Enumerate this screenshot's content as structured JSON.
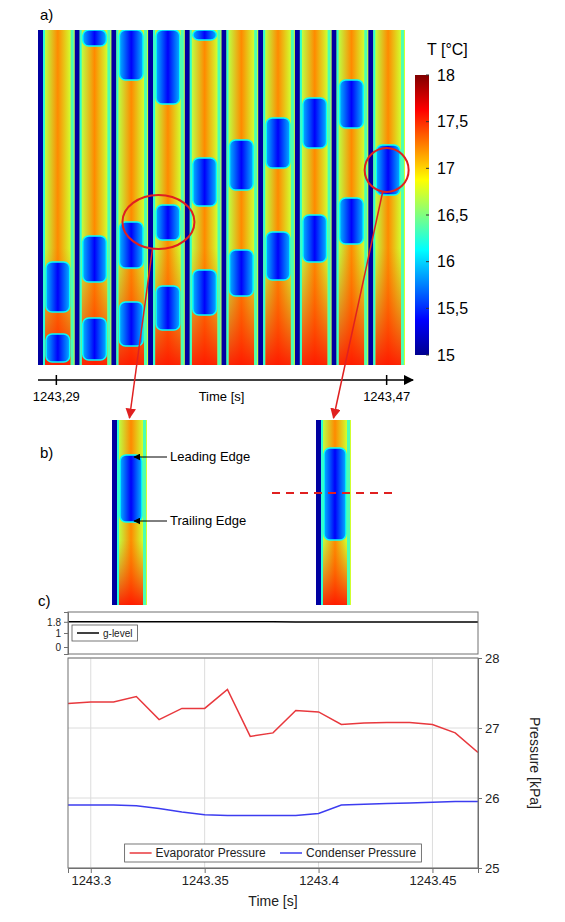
{
  "panel_a": {
    "label": "a)",
    "colorbar": {
      "title": "T [°C]",
      "range": [
        15,
        18
      ],
      "ticks": [
        15,
        {
          "value": 15.5,
          "label": "15,5"
        },
        16,
        {
          "value": 16.5,
          "label": "16,5"
        },
        17,
        {
          "value": 17.5,
          "label": "17,5"
        },
        18
      ]
    },
    "time_axis": {
      "title": "Time [s]",
      "ticks": [
        {
          "value": 1243.29,
          "label": "1243,29"
        },
        {
          "value": 1243.47,
          "label": "1243,47"
        }
      ]
    }
  },
  "panel_b": {
    "label": "b)",
    "annotations": [
      "Leading Edge",
      "Trailing Edge"
    ]
  },
  "panel_c": {
    "label": "c)"
  },
  "chart_data": [
    {
      "type": "line",
      "x": [
        1243.29,
        1243.3,
        1243.31,
        1243.32,
        1243.33,
        1243.34,
        1243.35,
        1243.36,
        1243.37,
        1243.38,
        1243.39,
        1243.4,
        1243.41,
        1243.42,
        1243.43,
        1243.44,
        1243.45,
        1243.46,
        1243.47
      ],
      "xlim": [
        1243.29,
        1243.47
      ],
      "ylim": [
        -0.5,
        2.5
      ],
      "yticks": [
        0,
        1,
        1.8
      ],
      "tick_labels": "y",
      "legend": "upper left",
      "series": [
        {
          "name": "g-level",
          "color": "#000000",
          "values": [
            1.8,
            1.8,
            1.8,
            1.8,
            1.8,
            1.8,
            1.8,
            1.8,
            1.8,
            1.8,
            1.79,
            1.79,
            1.79,
            1.79,
            1.79,
            1.79,
            1.79,
            1.79,
            1.79
          ]
        }
      ]
    },
    {
      "type": "line",
      "x_label": "Time [s]",
      "y_label": "Pressure [kPa]",
      "x": [
        1243.29,
        1243.3,
        1243.31,
        1243.32,
        1243.33,
        1243.34,
        1243.35,
        1243.36,
        1243.37,
        1243.38,
        1243.39,
        1243.4,
        1243.41,
        1243.42,
        1243.43,
        1243.44,
        1243.45,
        1243.46,
        1243.47
      ],
      "xlim": [
        1243.29,
        1243.47
      ],
      "xticks": [
        1243.3,
        1243.35,
        1243.4,
        1243.45
      ],
      "ylim": [
        25,
        28
      ],
      "yticks": [
        25,
        26,
        27,
        28
      ],
      "grid": true,
      "legend": "lower center",
      "series": [
        {
          "name": "Evaporator Pressure",
          "color": "#e8383d",
          "values": [
            27.35,
            27.37,
            27.37,
            27.45,
            27.12,
            27.28,
            27.28,
            27.55,
            26.88,
            26.93,
            27.25,
            27.23,
            27.05,
            27.07,
            27.08,
            27.08,
            27.05,
            26.93,
            26.65
          ]
        },
        {
          "name": "Condenser Pressure",
          "color": "#3c3cf0",
          "values": [
            25.9,
            25.9,
            25.9,
            25.89,
            25.85,
            25.8,
            25.76,
            25.75,
            25.75,
            25.75,
            25.75,
            25.78,
            25.9,
            25.91,
            25.92,
            25.93,
            25.94,
            25.95,
            25.95
          ]
        }
      ]
    }
  ]
}
